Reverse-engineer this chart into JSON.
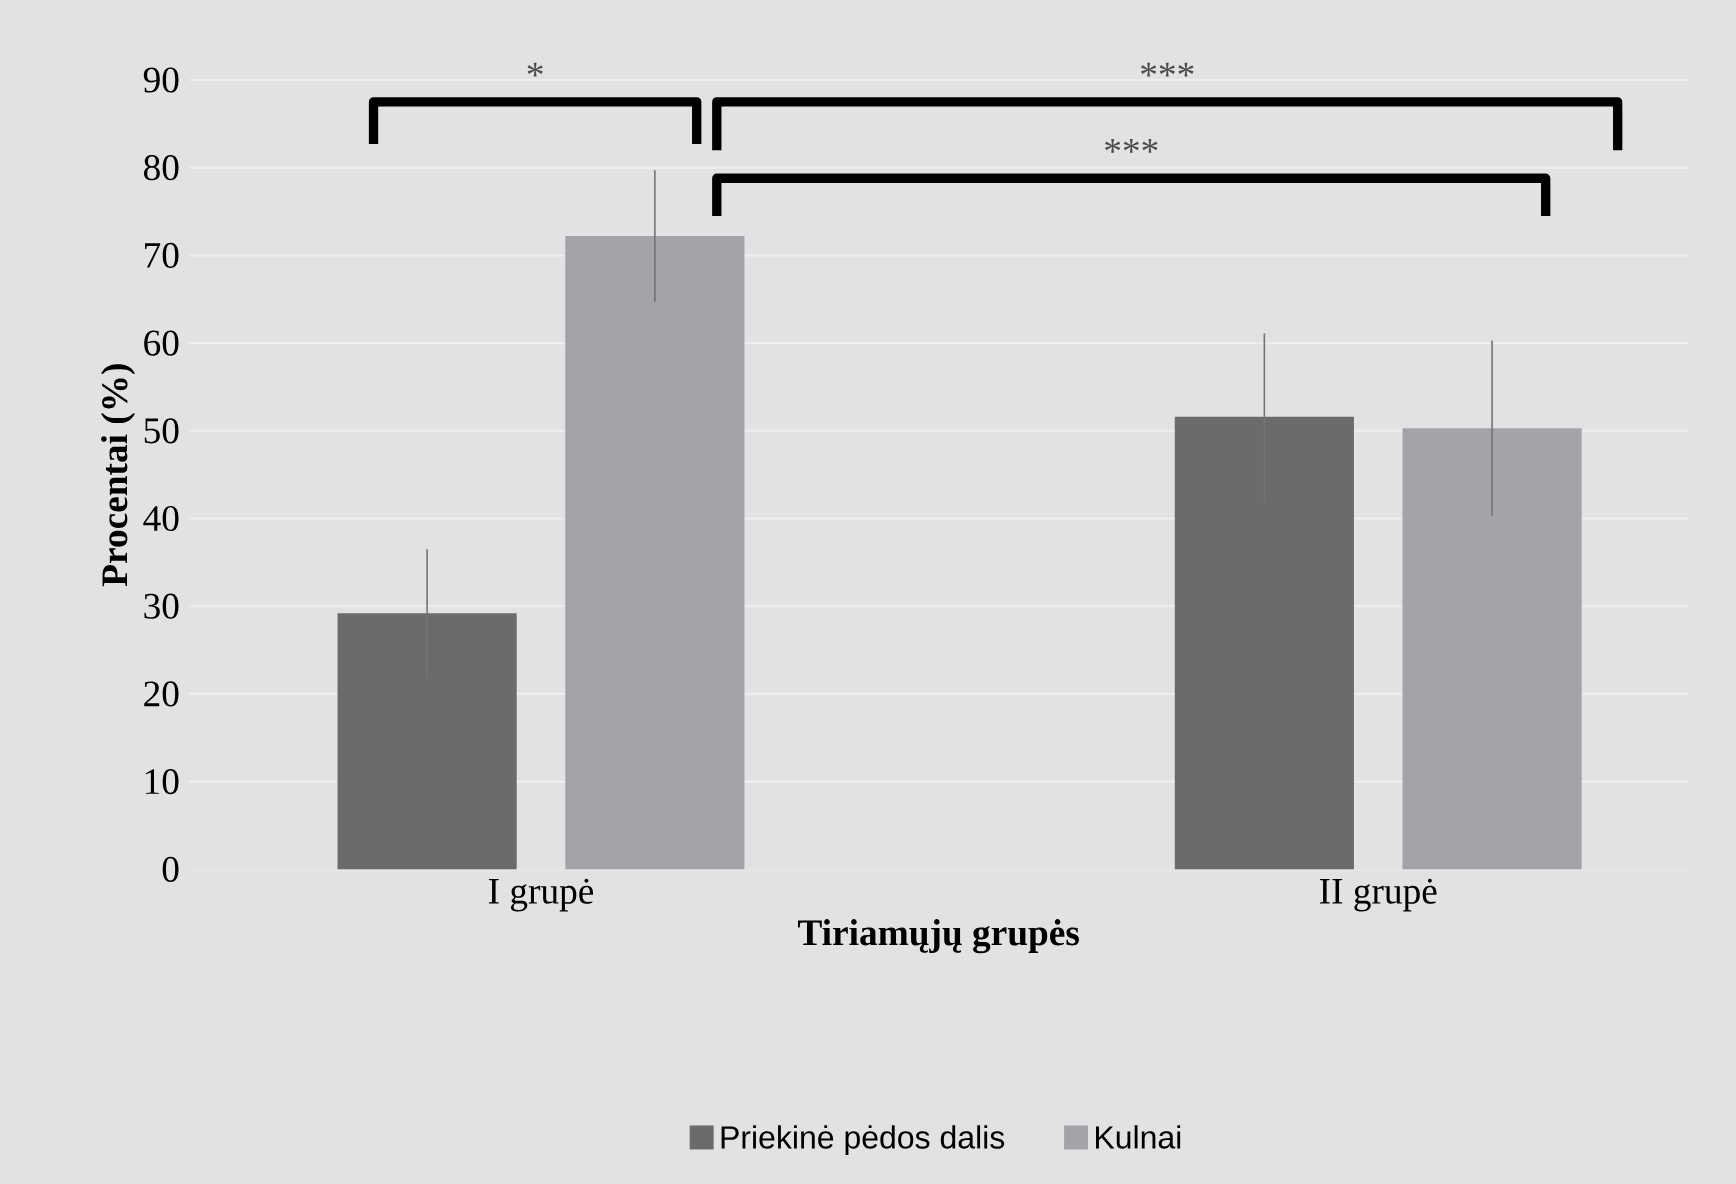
{
  "chart_data": {
    "type": "bar",
    "xlabel": "Tiriamųjų grupės",
    "ylabel": "Procentai (%)",
    "categories": [
      "I grupė",
      "II grupė"
    ],
    "series": [
      {
        "name": "Priekinė pėdos dalis",
        "color": "#6b6b6d",
        "values": [
          29.2,
          51.6
        ],
        "errors": [
          7.3,
          9.5
        ]
      },
      {
        "name": "Kulnai",
        "color": "#a3a4a8",
        "values": [
          72.2,
          50.3
        ],
        "errors": [
          7.5,
          10
        ]
      }
    ],
    "ylim": [
      0,
      90
    ],
    "yticks": [
      0,
      10,
      20,
      30,
      40,
      50,
      60,
      70,
      80,
      90
    ],
    "grid": "y",
    "legend": "bottom",
    "annotations": [
      "*",
      "***",
      "***"
    ]
  }
}
